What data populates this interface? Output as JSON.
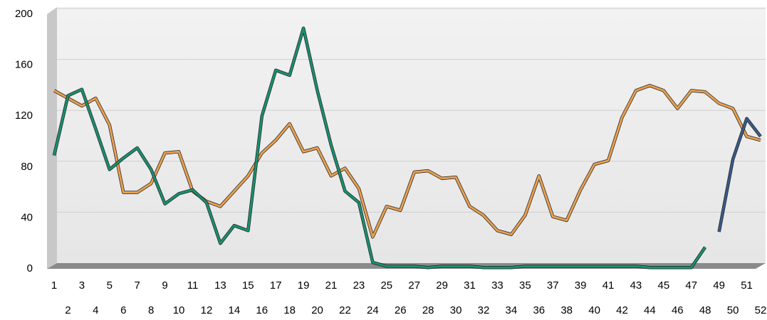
{
  "chart_data": {
    "type": "line",
    "categories": [
      1,
      2,
      3,
      4,
      5,
      6,
      7,
      8,
      9,
      10,
      11,
      12,
      13,
      14,
      15,
      16,
      17,
      18,
      19,
      20,
      21,
      22,
      23,
      24,
      25,
      26,
      27,
      28,
      29,
      30,
      31,
      32,
      33,
      34,
      35,
      36,
      37,
      38,
      39,
      40,
      41,
      42,
      43,
      44,
      45,
      46,
      47,
      48,
      49,
      50,
      51,
      52
    ],
    "series": [
      {
        "color": "#e8a050",
        "values": [
          140,
          134,
          128,
          134,
          113,
          60,
          60,
          67,
          91,
          92,
          61,
          53,
          49,
          61,
          73,
          91,
          101,
          114,
          92,
          95,
          73,
          79,
          63,
          25,
          49,
          46,
          76,
          77,
          71,
          72,
          49,
          42,
          30,
          27,
          42,
          73,
          41,
          38,
          62,
          82,
          85,
          119,
          140,
          144,
          140,
          126,
          140,
          139,
          130,
          126,
          104,
          101
        ]
      },
      {
        "color": "#1a9070",
        "values": [
          89,
          136,
          141,
          110,
          78,
          87,
          95,
          78,
          51,
          59,
          62,
          52,
          20,
          34,
          30,
          120,
          156,
          152,
          189,
          140,
          97,
          61,
          52,
          5,
          2,
          2,
          2,
          1,
          2,
          2,
          2,
          1,
          1,
          1,
          2,
          2,
          2,
          2,
          2,
          2,
          2,
          2,
          2,
          1,
          1,
          1,
          1,
          17,
          null,
          null,
          null,
          null
        ]
      },
      {
        "color": "#3a5a8a",
        "values": [
          null,
          null,
          null,
          null,
          null,
          null,
          null,
          null,
          null,
          null,
          null,
          null,
          null,
          null,
          null,
          null,
          null,
          null,
          null,
          null,
          null,
          null,
          null,
          null,
          null,
          null,
          null,
          null,
          null,
          null,
          null,
          null,
          null,
          null,
          null,
          null,
          null,
          null,
          null,
          null,
          null,
          null,
          null,
          null,
          null,
          null,
          null,
          null,
          29,
          86,
          118,
          104
        ]
      }
    ],
    "ylim": [
      0,
      200
    ],
    "yticks": [
      0,
      40,
      80,
      120,
      160,
      200
    ],
    "grid": true
  }
}
